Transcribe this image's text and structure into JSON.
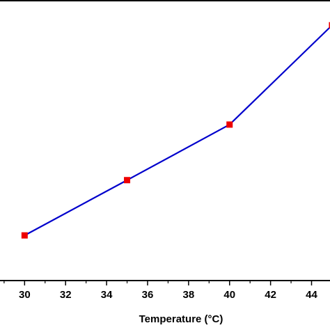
{
  "chart_data": {
    "type": "line",
    "title": "",
    "xlabel": "Temperature (°C)",
    "ylabel": "",
    "xlim": [
      28.8,
      44.9
    ],
    "ylim": [
      0,
      100
    ],
    "x_ticks": [
      30,
      32,
      34,
      36,
      38,
      40,
      42,
      44
    ],
    "grid": false,
    "legend": "none",
    "series": [
      {
        "x": [
          30,
          35,
          40,
          45
        ],
        "y": [
          16.1,
          35.8,
          55.6,
          91.0
        ],
        "line_color": "#0000cc",
        "marker_color": "#ee0000",
        "marker": "square"
      }
    ]
  }
}
